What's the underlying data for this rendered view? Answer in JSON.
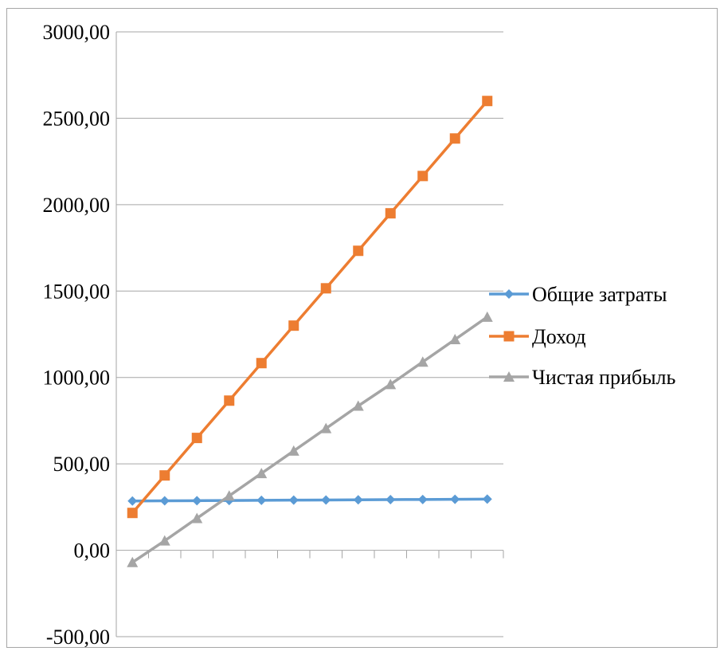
{
  "chart_data": {
    "type": "line",
    "title": "",
    "xlabel": "",
    "ylabel": "",
    "ylim": [
      -500,
      3000
    ],
    "ytick_step": 500,
    "yticks": [
      "-500,00",
      "0,00",
      "500,00",
      "1000,00",
      "1500,00",
      "2000,00",
      "2500,00",
      "3000,00"
    ],
    "x": [
      1,
      2,
      3,
      4,
      5,
      6,
      7,
      8,
      9,
      10,
      11,
      12
    ],
    "grid": true,
    "legend_position": "right",
    "series": [
      {
        "name": "Общие затраты",
        "color": "#5b9bd5",
        "marker": "diamond",
        "values": [
          285,
          286,
          287,
          288,
          289,
          290,
          291,
          292,
          293,
          294,
          295,
          296
        ]
      },
      {
        "name": "Доход",
        "color": "#ed7d31",
        "marker": "square",
        "values": [
          216,
          433,
          650,
          866,
          1083,
          1300,
          1516,
          1733,
          1950,
          2166,
          2383,
          2600
        ]
      },
      {
        "name": "Чистая прибыль",
        "color": "#a5a5a5",
        "marker": "triangle",
        "values": [
          -70,
          55,
          185,
          315,
          445,
          575,
          705,
          835,
          960,
          1090,
          1220,
          1350
        ]
      }
    ]
  }
}
